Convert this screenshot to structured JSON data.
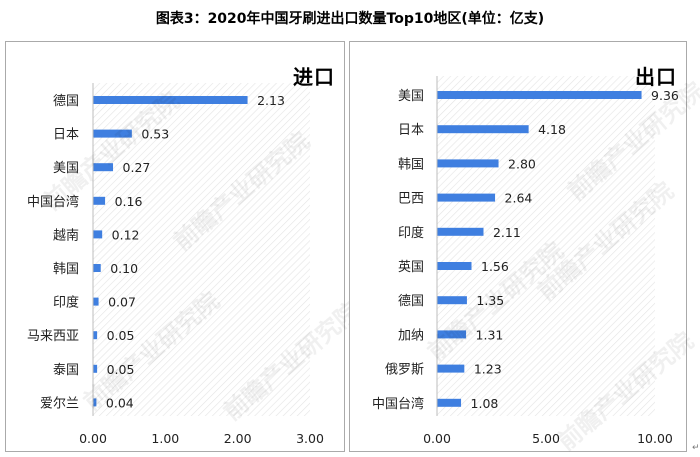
{
  "figure_title": "图表3：2020年中国牙刷进出口数量Top10地区(单位：亿支)",
  "watermark_text": "前瞻产业研究院",
  "panels": [
    {
      "id": "import",
      "corner_label": "进口",
      "chart_data": {
        "type": "bar",
        "orientation": "horizontal",
        "categories": [
          "德国",
          "日本",
          "美国",
          "中国台湾",
          "越南",
          "韩国",
          "印度",
          "马来西亚",
          "泰国",
          "爱尔兰"
        ],
        "values": [
          2.13,
          0.53,
          0.27,
          0.16,
          0.12,
          0.1,
          0.07,
          0.05,
          0.05,
          0.04
        ],
        "value_labels": [
          "2.13",
          "0.53",
          "0.27",
          "0.16",
          "0.12",
          "0.10",
          "0.07",
          "0.05",
          "0.05",
          "0.04"
        ],
        "xlim": [
          0,
          3
        ],
        "xticks": [
          0,
          1,
          2,
          3
        ],
        "xtick_labels": [
          "0.00",
          "1.00",
          "2.00",
          "3.00"
        ],
        "bar_color": "#3f7fe0",
        "plot_area_pattern": "diagonal hatch"
      }
    },
    {
      "id": "export",
      "corner_label": "出口",
      "chart_data": {
        "type": "bar",
        "orientation": "horizontal",
        "categories": [
          "美国",
          "日本",
          "韩国",
          "巴西",
          "印度",
          "英国",
          "德国",
          "加纳",
          "俄罗斯",
          "中国台湾"
        ],
        "values": [
          9.36,
          4.18,
          2.8,
          2.64,
          2.11,
          1.56,
          1.35,
          1.31,
          1.23,
          1.08
        ],
        "value_labels": [
          "9.36",
          "4.18",
          "2.80",
          "2.64",
          "2.11",
          "1.56",
          "1.35",
          "1.31",
          "1.23",
          "1.08"
        ],
        "xlim": [
          0,
          10
        ],
        "xticks": [
          0,
          5,
          10
        ],
        "xtick_labels": [
          "0.00",
          "5.00",
          "10.00"
        ],
        "bar_color": "#3f7fe0",
        "plot_area_pattern": "diagonal hatch"
      }
    }
  ],
  "trailing_mark": "↵"
}
